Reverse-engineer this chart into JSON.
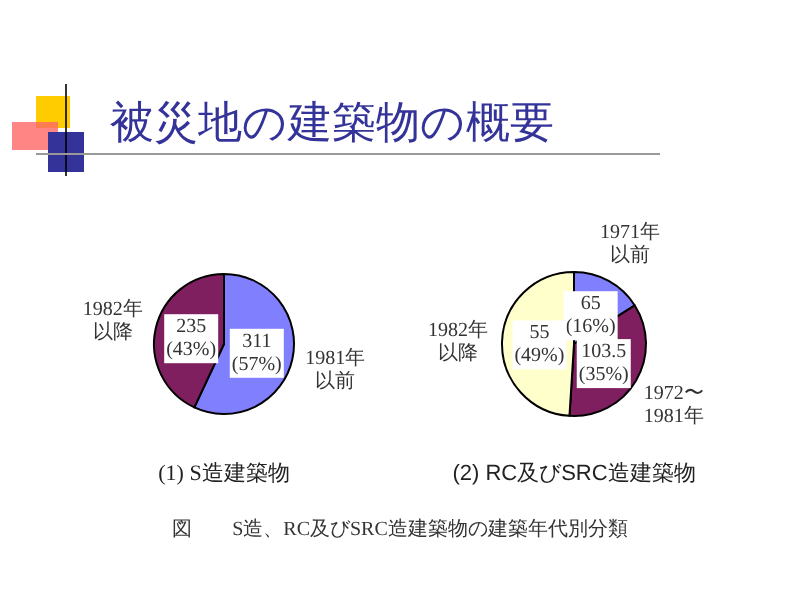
{
  "chart_data": [
    {
      "type": "pie",
      "title": "(1) S造建築物",
      "categories": [
        "1981年以前",
        "1982年以降"
      ],
      "values": [
        311,
        235
      ],
      "value_labels": [
        "311 (57%)",
        "235 (43%)"
      ],
      "colors": [
        "#8080ff",
        "#7f1f5f"
      ]
    },
    {
      "type": "pie",
      "title": "(2) RC及びSRC造建築物",
      "categories": [
        "1971年以前",
        "1972〜1981年",
        "1982年以降"
      ],
      "values": [
        16,
        35,
        49
      ],
      "value_labels": [
        "65 (16%)",
        "103.5 (35%)",
        "55 (49%)"
      ],
      "colors": [
        "#8080ff",
        "#7f1f5f",
        "#ffffcc"
      ]
    },
    {
      "type": "other",
      "title": "被災地の建築物の概要",
      "annotations": [
        "図　　S造、RC及びSRC造建築物の建築年代別分類"
      ]
    }
  ]
}
